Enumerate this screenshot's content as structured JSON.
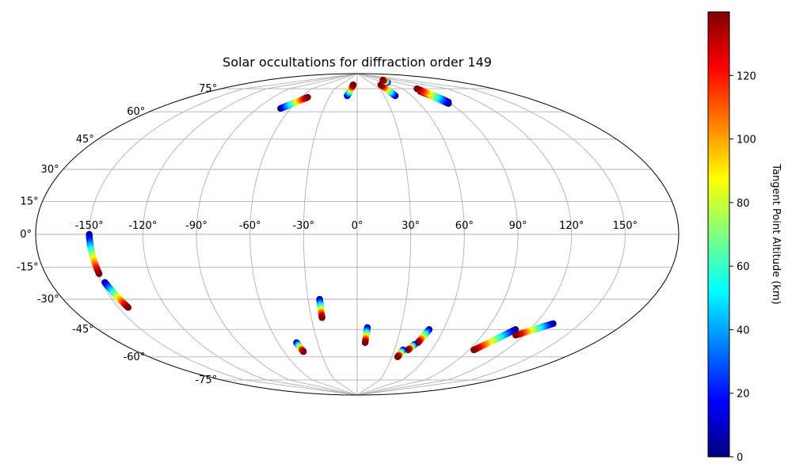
{
  "chart_data": {
    "type": "scatter",
    "projection": "mollweide",
    "title": "Solar occultations for diffraction order 149",
    "colorbar": {
      "label": "Tangent Point Altitude (km)",
      "colormap": "jet",
      "range": [
        0,
        140
      ],
      "ticks": [
        "0",
        "20",
        "40",
        "60",
        "80",
        "100",
        "120"
      ]
    },
    "grid": true,
    "lon_ticks": [
      "-150°",
      "-120°",
      "-90°",
      "-60°",
      "-30°",
      "0°",
      "30°",
      "60°",
      "90°",
      "120°",
      "150°"
    ],
    "lat_ticks": [
      "75°",
      "60°",
      "45°",
      "30°",
      "15°",
      "0°",
      "-15°",
      "-30°",
      "-45°",
      "-60°",
      "-75°"
    ],
    "series": [
      {
        "start": [
          -69,
          62
        ],
        "end": [
          -53,
          69
        ]
      },
      {
        "start": [
          -11,
          70
        ],
        "end": [
          -6,
          78
        ]
      },
      {
        "start": [
          42,
          70
        ],
        "end": [
          36,
          78
        ]
      },
      {
        "start": [
          52,
          80
        ],
        "end": [
          51,
          82
        ]
      },
      {
        "start": [
          88,
          65
        ],
        "end": [
          77,
          73
        ]
      },
      {
        "start": [
          90,
          66
        ],
        "end": [
          79,
          75
        ]
      },
      {
        "start": [
          -150,
          0
        ],
        "end": [
          -149,
          -18
        ]
      },
      {
        "start": [
          -148,
          -22
        ],
        "end": [
          -144,
          -34
        ]
      },
      {
        "start": [
          -46,
          -52
        ],
        "end": [
          -44,
          -57
        ]
      },
      {
        "start": [
          -23,
          -30
        ],
        "end": [
          -23,
          -39
        ]
      },
      {
        "start": [
          7,
          -44
        ],
        "end": [
          6,
          -52
        ]
      },
      {
        "start": [
          50,
          -45
        ],
        "end": [
          46,
          -52
        ]
      },
      {
        "start": [
          44,
          -53
        ],
        "end": [
          41,
          -56
        ]
      },
      {
        "start": [
          37,
          -56
        ],
        "end": [
          35,
          -60
        ]
      },
      {
        "start": [
          110,
          -45
        ],
        "end": [
          94,
          -56
        ]
      },
      {
        "start": [
          132,
          -42
        ],
        "end": [
          114,
          -48
        ]
      }
    ]
  }
}
